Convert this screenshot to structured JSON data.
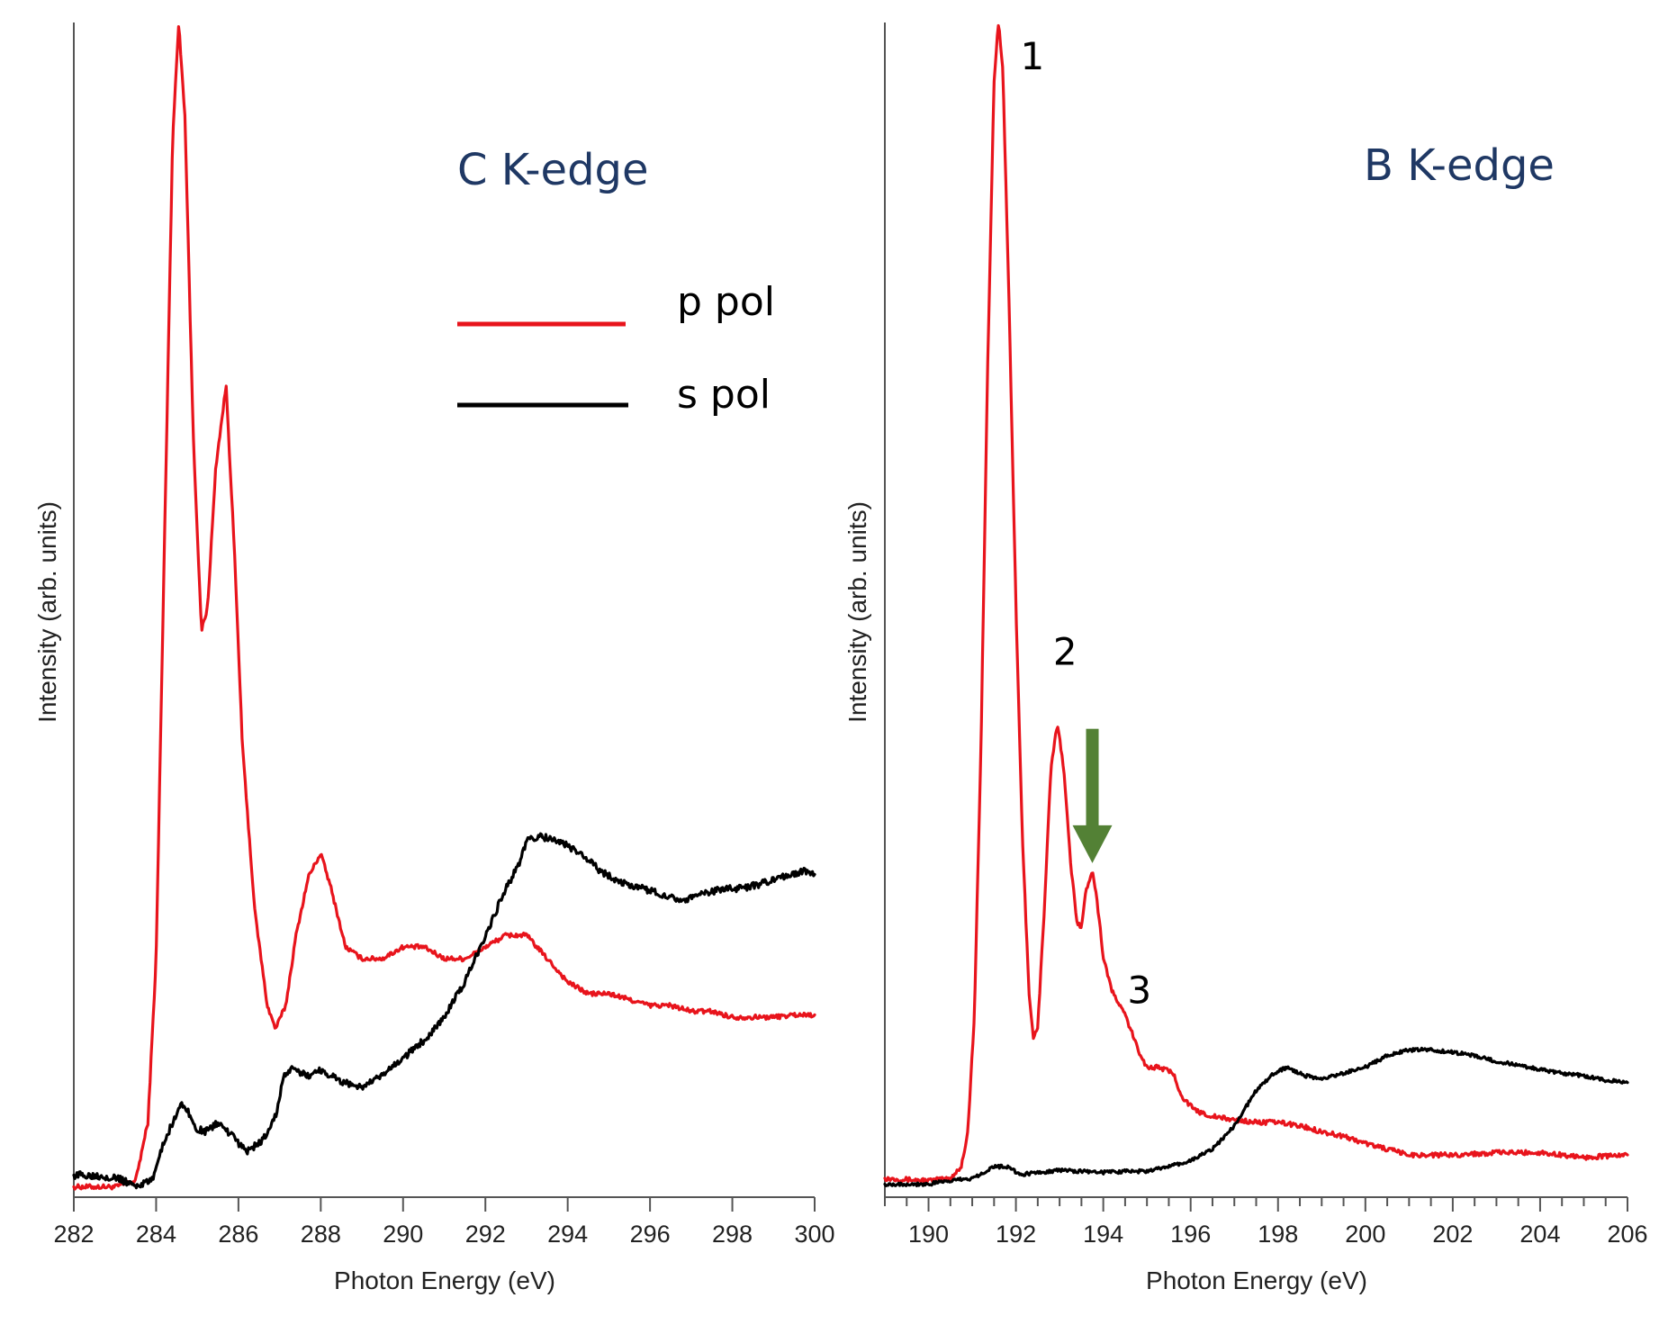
{
  "chart_data": [
    {
      "type": "line",
      "title": "C K-edge",
      "xlabel": "Photon Energy (eV)",
      "ylabel": "Intensity (arb. units)",
      "xlim": [
        282,
        300
      ],
      "ylim": [
        0,
        1
      ],
      "xticks": [
        282,
        284,
        286,
        288,
        290,
        292,
        294,
        296,
        298,
        300
      ],
      "xtick_labels": [
        "282",
        "284",
        "286",
        "288",
        "290",
        "292",
        "294",
        "296",
        "298",
        "300"
      ],
      "title_color": "#1f3864",
      "legend": [
        {
          "name": "p pol",
          "color": "#e8141c"
        },
        {
          "name": "s pol",
          "color": "#000000"
        }
      ],
      "series": [
        {
          "name": "p pol",
          "color": "#e8141c",
          "noise": 0.004,
          "points": [
            [
              282,
              0.005
            ],
            [
              283,
              0.005
            ],
            [
              283.5,
              0.01
            ],
            [
              283.8,
              0.06
            ],
            [
              284.0,
              0.2
            ],
            [
              284.2,
              0.55
            ],
            [
              284.4,
              0.9
            ],
            [
              284.55,
              1.0
            ],
            [
              284.7,
              0.92
            ],
            [
              284.9,
              0.65
            ],
            [
              285.1,
              0.48
            ],
            [
              285.25,
              0.5
            ],
            [
              285.45,
              0.62
            ],
            [
              285.7,
              0.69
            ],
            [
              285.9,
              0.55
            ],
            [
              286.1,
              0.38
            ],
            [
              286.4,
              0.24
            ],
            [
              286.7,
              0.16
            ],
            [
              286.9,
              0.14
            ],
            [
              287.15,
              0.16
            ],
            [
              287.4,
              0.22
            ],
            [
              287.7,
              0.27
            ],
            [
              288.0,
              0.29
            ],
            [
              288.25,
              0.26
            ],
            [
              288.6,
              0.21
            ],
            [
              289.0,
              0.2
            ],
            [
              289.5,
              0.2
            ],
            [
              290.0,
              0.21
            ],
            [
              290.5,
              0.21
            ],
            [
              291.0,
              0.2
            ],
            [
              291.5,
              0.2
            ],
            [
              292.0,
              0.21
            ],
            [
              292.5,
              0.22
            ],
            [
              293.0,
              0.22
            ],
            [
              293.5,
              0.2
            ],
            [
              294.0,
              0.18
            ],
            [
              294.5,
              0.17
            ],
            [
              295.0,
              0.17
            ],
            [
              295.5,
              0.165
            ],
            [
              296.0,
              0.16
            ],
            [
              296.5,
              0.16
            ],
            [
              297.0,
              0.155
            ],
            [
              297.5,
              0.155
            ],
            [
              298.0,
              0.15
            ],
            [
              298.5,
              0.15
            ],
            [
              299.0,
              0.15
            ],
            [
              299.5,
              0.152
            ],
            [
              300.0,
              0.152
            ]
          ]
        },
        {
          "name": "s pol",
          "color": "#000000",
          "noise": 0.006,
          "points": [
            [
              282,
              0.015
            ],
            [
              282.5,
              0.015
            ],
            [
              283.0,
              0.013
            ],
            [
              283.5,
              0.006
            ],
            [
              283.9,
              0.01
            ],
            [
              284.1,
              0.035
            ],
            [
              284.4,
              0.06
            ],
            [
              284.6,
              0.075
            ],
            [
              284.75,
              0.072
            ],
            [
              284.95,
              0.055
            ],
            [
              285.2,
              0.052
            ],
            [
              285.5,
              0.06
            ],
            [
              285.8,
              0.05
            ],
            [
              286.2,
              0.035
            ],
            [
              286.6,
              0.045
            ],
            [
              286.9,
              0.065
            ],
            [
              287.1,
              0.1
            ],
            [
              287.3,
              0.105
            ],
            [
              287.7,
              0.1
            ],
            [
              288.0,
              0.105
            ],
            [
              288.5,
              0.095
            ],
            [
              289.0,
              0.09
            ],
            [
              289.5,
              0.1
            ],
            [
              290.0,
              0.115
            ],
            [
              290.5,
              0.13
            ],
            [
              291.0,
              0.15
            ],
            [
              291.5,
              0.18
            ],
            [
              292.0,
              0.22
            ],
            [
              292.5,
              0.26
            ],
            [
              292.8,
              0.28
            ],
            [
              293.0,
              0.3
            ],
            [
              293.3,
              0.305
            ],
            [
              293.8,
              0.3
            ],
            [
              294.3,
              0.29
            ],
            [
              294.8,
              0.275
            ],
            [
              295.3,
              0.265
            ],
            [
              295.8,
              0.26
            ],
            [
              296.3,
              0.255
            ],
            [
              296.8,
              0.25
            ],
            [
              297.3,
              0.255
            ],
            [
              297.8,
              0.26
            ],
            [
              298.3,
              0.26
            ],
            [
              298.8,
              0.265
            ],
            [
              299.3,
              0.27
            ],
            [
              299.7,
              0.275
            ],
            [
              300.0,
              0.272
            ]
          ]
        }
      ]
    },
    {
      "type": "line",
      "title": "B K-edge",
      "xlabel": "Photon Energy (eV)",
      "ylabel": "Intensity (arb. units)",
      "xlim": [
        189,
        206
      ],
      "ylim": [
        0,
        1
      ],
      "xticks": [
        190,
        192,
        194,
        196,
        198,
        200,
        202,
        204,
        206
      ],
      "xtick_labels": [
        "190",
        "192",
        "194",
        "196",
        "198",
        "200",
        "202",
        "204",
        "206"
      ],
      "minor_step": 0.5,
      "title_color": "#1f3864",
      "annotations": [
        {
          "text": "1",
          "x": 192.1,
          "y": 0.96
        },
        {
          "text": "2",
          "x": 192.85,
          "y": 0.45
        },
        {
          "text": "3",
          "x": 194.55,
          "y": 0.16
        }
      ],
      "arrow": {
        "x": 193.75,
        "y_top": 0.395,
        "y_bottom": 0.28,
        "color": "#538135"
      },
      "series": [
        {
          "name": "p pol",
          "color": "#e8141c",
          "noise": 0.004,
          "points": [
            [
              189,
              0.01
            ],
            [
              190,
              0.008
            ],
            [
              190.5,
              0.01
            ],
            [
              190.75,
              0.02
            ],
            [
              190.9,
              0.05
            ],
            [
              191.05,
              0.15
            ],
            [
              191.2,
              0.38
            ],
            [
              191.35,
              0.7
            ],
            [
              191.5,
              0.95
            ],
            [
              191.6,
              1.0
            ],
            [
              191.7,
              0.96
            ],
            [
              191.85,
              0.75
            ],
            [
              192.0,
              0.5
            ],
            [
              192.15,
              0.3
            ],
            [
              192.3,
              0.17
            ],
            [
              192.4,
              0.13
            ],
            [
              192.5,
              0.14
            ],
            [
              192.65,
              0.24
            ],
            [
              192.8,
              0.36
            ],
            [
              192.95,
              0.4
            ],
            [
              193.1,
              0.36
            ],
            [
              193.25,
              0.28
            ],
            [
              193.4,
              0.23
            ],
            [
              193.5,
              0.225
            ],
            [
              193.6,
              0.255
            ],
            [
              193.75,
              0.275
            ],
            [
              193.85,
              0.25
            ],
            [
              194.0,
              0.2
            ],
            [
              194.2,
              0.17
            ],
            [
              194.5,
              0.15
            ],
            [
              194.8,
              0.12
            ],
            [
              195.0,
              0.105
            ],
            [
              195.3,
              0.105
            ],
            [
              195.6,
              0.1
            ],
            [
              195.8,
              0.08
            ],
            [
              196.1,
              0.068
            ],
            [
              196.5,
              0.063
            ],
            [
              197.0,
              0.06
            ],
            [
              197.5,
              0.058
            ],
            [
              198.0,
              0.058
            ],
            [
              198.5,
              0.055
            ],
            [
              199.0,
              0.05
            ],
            [
              199.5,
              0.046
            ],
            [
              200.0,
              0.04
            ],
            [
              200.5,
              0.035
            ],
            [
              201.0,
              0.03
            ],
            [
              201.5,
              0.03
            ],
            [
              202.0,
              0.03
            ],
            [
              203.0,
              0.032
            ],
            [
              204.0,
              0.032
            ],
            [
              205.0,
              0.028
            ],
            [
              206.0,
              0.03
            ]
          ]
        },
        {
          "name": "s pol",
          "color": "#000000",
          "noise": 0.003,
          "points": [
            [
              189,
              0.005
            ],
            [
              190,
              0.005
            ],
            [
              190.5,
              0.008
            ],
            [
              191.0,
              0.01
            ],
            [
              191.5,
              0.02
            ],
            [
              191.8,
              0.02
            ],
            [
              192.1,
              0.013
            ],
            [
              192.5,
              0.015
            ],
            [
              193.0,
              0.017
            ],
            [
              193.5,
              0.016
            ],
            [
              194.0,
              0.015
            ],
            [
              194.5,
              0.016
            ],
            [
              195.0,
              0.016
            ],
            [
              195.5,
              0.02
            ],
            [
              196.0,
              0.025
            ],
            [
              196.5,
              0.035
            ],
            [
              197.0,
              0.055
            ],
            [
              197.5,
              0.085
            ],
            [
              197.9,
              0.1
            ],
            [
              198.2,
              0.105
            ],
            [
              198.6,
              0.098
            ],
            [
              199.0,
              0.095
            ],
            [
              199.5,
              0.1
            ],
            [
              200.0,
              0.105
            ],
            [
              200.5,
              0.115
            ],
            [
              201.0,
              0.12
            ],
            [
              201.5,
              0.12
            ],
            [
              202.0,
              0.118
            ],
            [
              202.5,
              0.115
            ],
            [
              203.0,
              0.11
            ],
            [
              203.5,
              0.107
            ],
            [
              204.0,
              0.103
            ],
            [
              204.5,
              0.1
            ],
            [
              205.0,
              0.098
            ],
            [
              205.5,
              0.094
            ],
            [
              206.0,
              0.092
            ]
          ]
        }
      ]
    }
  ]
}
